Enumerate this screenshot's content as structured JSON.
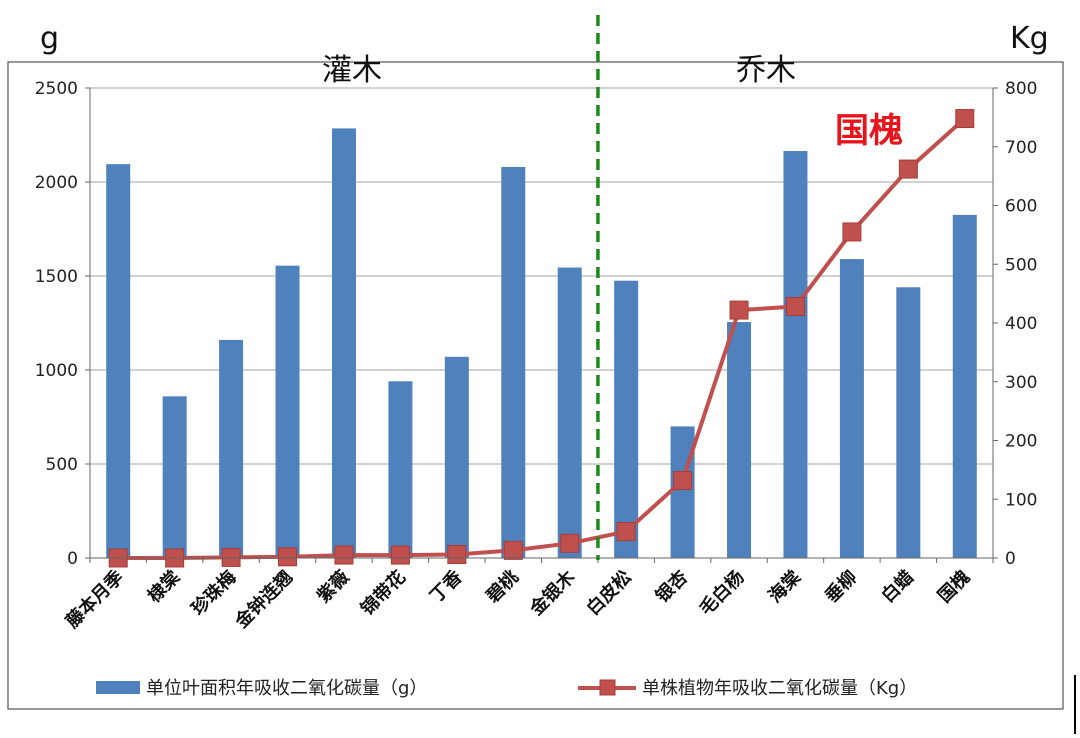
{
  "chart_data": {
    "type": "bar",
    "categories": [
      "藤本月季",
      "棣棠",
      "珍珠梅",
      "金钟连翘",
      "紫薇",
      "锦带花",
      "丁香",
      "碧桃",
      "金银木",
      "白皮松",
      "银杏",
      "毛白杨",
      "海棠",
      "垂柳",
      "白蜡",
      "国槐"
    ],
    "series": [
      {
        "name": "单位叶面积年吸收二氧化碳量（g）",
        "type": "bar",
        "axis": "left",
        "color": "#4f81bd",
        "values": [
          2095,
          860,
          1160,
          1555,
          2285,
          940,
          1070,
          2080,
          1545,
          1475,
          700,
          1255,
          2165,
          1590,
          1440,
          1825
        ]
      },
      {
        "name": "单株植物年吸收二氧化碳量（Kg）",
        "type": "line",
        "axis": "right",
        "color": "#c0504d",
        "values": [
          0,
          0,
          1,
          2,
          5,
          5,
          6,
          13,
          25,
          45,
          132,
          422,
          428,
          555,
          662,
          748
        ]
      }
    ],
    "y_left": {
      "unit": "g",
      "range": [
        0,
        2500
      ],
      "ticks": [
        "0",
        "500",
        "1000",
        "1500",
        "2000",
        "2500"
      ]
    },
    "y_right": {
      "unit": "Kg",
      "range": [
        0,
        800
      ],
      "ticks": [
        "0",
        "100",
        "200",
        "300",
        "400",
        "500",
        "600",
        "700",
        "800"
      ]
    },
    "groups": [
      {
        "label": "灌木",
        "from": 0,
        "to": 8
      },
      {
        "label": "乔木",
        "from": 9,
        "to": 15
      }
    ],
    "divider_after_index": 8,
    "annotation": {
      "text": "国槐",
      "color": "#e8141b"
    },
    "grid": true,
    "legend_position": "bottom"
  }
}
